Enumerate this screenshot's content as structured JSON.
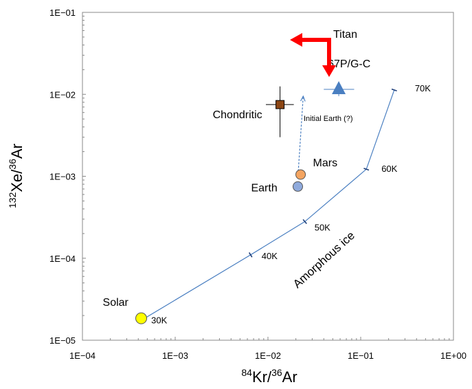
{
  "chart_data": {
    "type": "scatter",
    "xscale": "log",
    "yscale": "log",
    "xlim": [
      0.0001,
      1
    ],
    "ylim": [
      1e-05,
      0.1
    ],
    "grid": false,
    "x_ticks": [
      "1E−04",
      "1E−03",
      "1E−02",
      "1E−01",
      "1E+00"
    ],
    "y_ticks": [
      "1E−05",
      "1E−04",
      "1E−03",
      "1E−02",
      "1E−01"
    ],
    "xlabel": {
      "sup": "84",
      "main": "Kr/",
      "sup2": "36",
      "tail": "Ar"
    },
    "ylabel": {
      "sup": "132",
      "main": "Xe/",
      "sup2": "36",
      "tail": "Ar"
    },
    "amorphous_ice": {
      "label": "Amorphous ice",
      "points": [
        {
          "x": 0.00045,
          "y": 1.8e-05,
          "label": "30K"
        },
        {
          "x": 0.0065,
          "y": 0.00011,
          "label": "40K"
        },
        {
          "x": 0.025,
          "y": 0.00028,
          "label": "50K"
        },
        {
          "x": 0.115,
          "y": 0.00122,
          "label": "60K"
        },
        {
          "x": 0.23,
          "y": 0.0113,
          "label": "70K"
        }
      ],
      "color": "#4a7fc1"
    },
    "points": [
      {
        "name": "Solar",
        "label": "Solar",
        "x": 0.00043,
        "y": 1.85e-05,
        "marker": "circle",
        "color": "#ffff00"
      },
      {
        "name": "Earth",
        "label": "Earth",
        "x": 0.021,
        "y": 0.00075,
        "marker": "circle",
        "color": "#8faadc"
      },
      {
        "name": "Mars",
        "label": "Mars",
        "x": 0.0225,
        "y": 0.00105,
        "marker": "circle",
        "color": "#f4a460"
      },
      {
        "name": "Chondritic",
        "label": "Chondritic",
        "x": 0.0135,
        "y": 0.0075,
        "marker": "square",
        "color": "#8b4513",
        "x_err": [
          0.0095,
          0.019
        ],
        "y_err": [
          0.003,
          0.0125
        ]
      },
      {
        "name": "67P/G-C",
        "label": "67P/G-C",
        "x": 0.058,
        "y": 0.0115,
        "marker": "triangle",
        "color": "#4a7fc1",
        "x_err": [
          0.04,
          0.085
        ],
        "y_err": [
          0.0095,
          0.0135
        ]
      }
    ],
    "initial_earth": {
      "label": "Initial Earth (?)",
      "from": {
        "x": 0.021,
        "y": 0.00095
      },
      "to": {
        "x": 0.024,
        "y": 0.0095
      }
    },
    "titan": {
      "label": "Titan",
      "color": "#ff0000"
    }
  }
}
